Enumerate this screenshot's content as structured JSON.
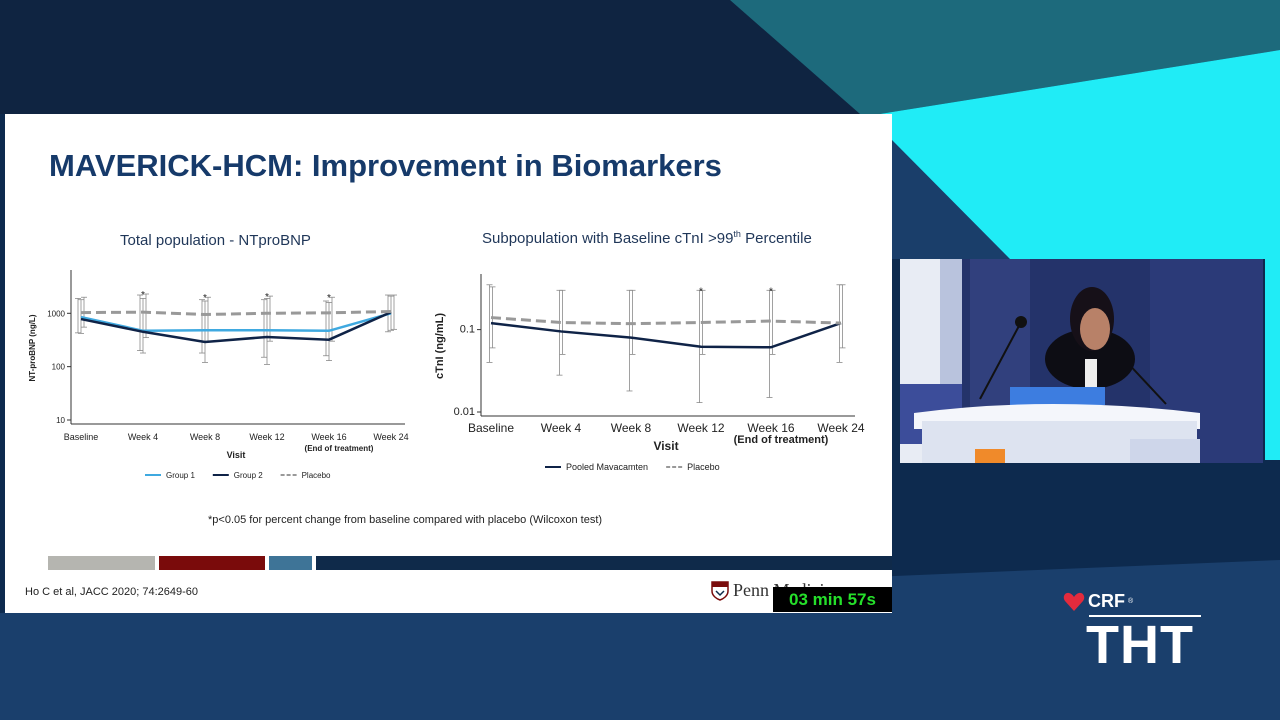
{
  "slide": {
    "title": "MAVERICK-HCM: Improvement in Biomarkers",
    "left_chart_title": "Total population - NTproBNP",
    "right_chart_title_prefix": "Subpopulation with Baseline cTnI >99",
    "right_chart_title_sup": "th",
    "right_chart_title_suffix": " Percentile",
    "footnote": "*p<0.05 for percent change from baseline  compared with placebo (Wilcoxon test)",
    "citation": "Ho C et al, JACC 2020; 74:2649-60",
    "logo_text": "Penn Medicine",
    "bar_colors": [
      "#b5b5b0",
      "#7a0b0b",
      "#3e7497",
      "#0f2a4a"
    ]
  },
  "overlay": {
    "timer": "03 min 57s",
    "brand_crf": "CRF",
    "brand_reg": "®",
    "brand_tht": "THT"
  },
  "chart_data": [
    {
      "type": "line",
      "title": "Total population - NTproBNP",
      "xlabel": "Visit",
      "ylabel": "NT-proBNP (ng/L)",
      "y_scale": "log",
      "ylim": [
        10,
        5000
      ],
      "y_ticks": [
        10,
        100,
        1000
      ],
      "categories": [
        "Baseline",
        "Week 4",
        "Week 8",
        "Week 12",
        "Week 16",
        "Week 24"
      ],
      "end_of_treatment_label": "(End of treatment)",
      "end_of_treatment_index": 4,
      "significance_marker": "*",
      "significant_indices": [
        1,
        2,
        3,
        4
      ],
      "series": [
        {
          "name": "Group 1",
          "color": "#3fa9e0",
          "dash": false,
          "values": [
            850,
            470,
            480,
            480,
            470,
            1000
          ],
          "err_low": [
            430,
            200,
            180,
            150,
            160,
            450
          ],
          "err_high": [
            1900,
            2200,
            1800,
            1800,
            1700,
            2200
          ]
        },
        {
          "name": "Group 2",
          "color": "#0f2347",
          "dash": false,
          "values": [
            780,
            450,
            290,
            360,
            320,
            1050
          ],
          "err_low": [
            420,
            180,
            120,
            110,
            130,
            480
          ],
          "err_high": [
            1800,
            1900,
            1700,
            1900,
            1600,
            2100
          ]
        },
        {
          "name": "Placebo",
          "color": "#999999",
          "dash": true,
          "values": [
            1030,
            1050,
            950,
            1000,
            1020,
            1080
          ],
          "err_low": [
            550,
            350,
            300,
            300,
            300,
            500
          ],
          "err_high": [
            2000,
            2300,
            2000,
            2100,
            2000,
            2200
          ]
        }
      ]
    },
    {
      "type": "line",
      "title": "Subpopulation with Baseline cTnI >99th Percentile",
      "xlabel": "Visit",
      "ylabel": "cTnI (ng/mL)",
      "y_scale": "log",
      "ylim": [
        0.01,
        0.4
      ],
      "y_ticks": [
        0.01,
        0.1
      ],
      "categories": [
        "Baseline",
        "Week 4",
        "Week 8",
        "Week 12",
        "Week 16",
        "Week 24"
      ],
      "end_of_treatment_label": "(End of treatment)",
      "end_of_treatment_index": 4,
      "significance_marker": "*",
      "significant_indices": [
        3,
        4
      ],
      "series": [
        {
          "name": "Pooled Mavacamten",
          "color": "#0f2347",
          "dash": false,
          "values": [
            0.12,
            0.095,
            0.08,
            0.062,
            0.061,
            0.12
          ],
          "err_low": [
            0.04,
            0.028,
            0.018,
            0.013,
            0.015,
            0.04
          ],
          "err_high": [
            0.35,
            0.3,
            0.3,
            0.3,
            0.3,
            0.35
          ]
        },
        {
          "name": "Placebo",
          "color": "#999999",
          "dash": true,
          "values": [
            0.14,
            0.122,
            0.118,
            0.122,
            0.127,
            0.12
          ],
          "err_low": [
            0.06,
            0.05,
            0.05,
            0.05,
            0.05,
            0.06
          ],
          "err_high": [
            0.33,
            0.3,
            0.3,
            0.3,
            0.3,
            0.35
          ]
        }
      ]
    }
  ]
}
